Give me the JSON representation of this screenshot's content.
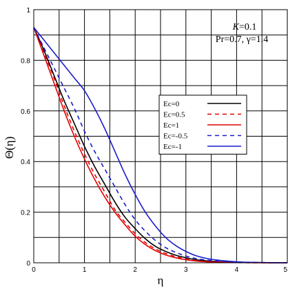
{
  "chart_data": {
    "type": "line",
    "xlabel": "η",
    "ylabel": "Θ(η)",
    "xlim": [
      0,
      5
    ],
    "ylim": [
      0,
      1
    ],
    "x_ticks": [
      "0",
      "1",
      "2",
      "3",
      "4",
      "5"
    ],
    "y_ticks": [
      "0",
      "0.2",
      "0.4",
      "0.6",
      "0.8",
      "1"
    ],
    "grid": true,
    "legend_position": "center-right",
    "annotation": {
      "line1_var": "K",
      "line1_value": "=0.1",
      "line2": "Pr=0.7, γ=1.4"
    },
    "series": [
      {
        "name": "Ec=0",
        "color": "#000000",
        "dash": "solid",
        "x": [
          0,
          0.2,
          0.4,
          0.6,
          0.8,
          1.0,
          1.2,
          1.4,
          1.6,
          1.8,
          2.0,
          2.2,
          2.4,
          2.6,
          2.8,
          3.0,
          3.2,
          3.5,
          4.0,
          4.5,
          5.0
        ],
        "y": [
          0.93,
          0.84,
          0.74,
          0.64,
          0.55,
          0.46,
          0.38,
          0.31,
          0.24,
          0.18,
          0.135,
          0.095,
          0.065,
          0.045,
          0.03,
          0.02,
          0.012,
          0.006,
          0.002,
          0.001,
          0
        ]
      },
      {
        "name": "Ec=0.5",
        "color": "#e00000",
        "dash": "dashed",
        "x": [
          0,
          0.2,
          0.4,
          0.6,
          0.8,
          1.0,
          1.2,
          1.4,
          1.6,
          1.8,
          2.0,
          2.2,
          2.4,
          2.6,
          2.8,
          3.0,
          3.2,
          3.5,
          4.0,
          4.5,
          5.0
        ],
        "y": [
          0.93,
          0.83,
          0.73,
          0.62,
          0.52,
          0.43,
          0.35,
          0.28,
          0.21,
          0.16,
          0.115,
          0.08,
          0.055,
          0.037,
          0.024,
          0.015,
          0.009,
          0.004,
          0.001,
          0,
          0
        ]
      },
      {
        "name": "Ec=1",
        "color": "#e00000",
        "dash": "solid",
        "x": [
          0,
          0.2,
          0.4,
          0.6,
          0.8,
          1.0,
          1.2,
          1.4,
          1.6,
          1.8,
          2.0,
          2.2,
          2.4,
          2.6,
          2.8,
          3.0,
          3.2,
          3.5,
          4.0,
          4.5,
          5.0
        ],
        "y": [
          0.93,
          0.82,
          0.71,
          0.6,
          0.5,
          0.41,
          0.33,
          0.26,
          0.2,
          0.15,
          0.105,
          0.072,
          0.048,
          0.031,
          0.02,
          0.012,
          0.007,
          0.003,
          0.001,
          0,
          0
        ]
      },
      {
        "name": "Ec=-0.5",
        "color": "#1a1acc",
        "dash": "dashed",
        "x": [
          0,
          0.2,
          0.4,
          0.6,
          0.8,
          1.0,
          1.2,
          1.4,
          1.6,
          1.8,
          2.0,
          2.2,
          2.4,
          2.6,
          2.8,
          3.0,
          3.2,
          3.5,
          4.0,
          4.5,
          5.0
        ],
        "y": [
          0.93,
          0.85,
          0.77,
          0.69,
          0.61,
          0.52,
          0.44,
          0.37,
          0.3,
          0.23,
          0.17,
          0.125,
          0.088,
          0.06,
          0.041,
          0.027,
          0.017,
          0.009,
          0.003,
          0.001,
          0
        ]
      },
      {
        "name": "Ec=-1",
        "color": "#1a1acc",
        "dash": "solid",
        "x": [
          0,
          0.2,
          0.4,
          0.6,
          0.8,
          1.0,
          1.2,
          1.4,
          1.6,
          1.8,
          2.0,
          2.2,
          2.4,
          2.6,
          2.8,
          3.0,
          3.2,
          3.5,
          4.0,
          4.5,
          5.0
        ],
        "y": [
          0.93,
          0.88,
          0.83,
          0.78,
          0.73,
          0.68,
          0.61,
          0.53,
          0.44,
          0.35,
          0.27,
          0.2,
          0.145,
          0.1,
          0.068,
          0.045,
          0.028,
          0.014,
          0.004,
          0.001,
          0
        ]
      }
    ]
  }
}
